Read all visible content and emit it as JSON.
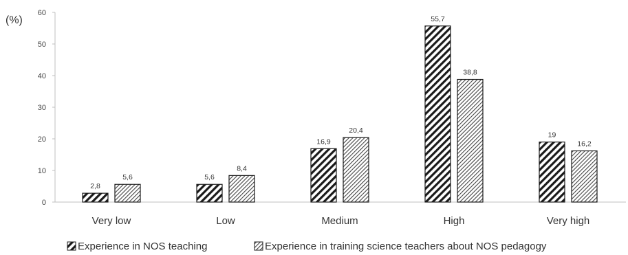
{
  "chart_data": {
    "type": "bar",
    "ylabel": "(%)",
    "ylim": [
      0,
      60
    ],
    "yticks": [
      "0",
      "10",
      "20",
      "30",
      "40",
      "50",
      "60"
    ],
    "grid": false,
    "legend_position": "bottom",
    "categories": [
      "Very low",
      "Low",
      "Medium",
      "High",
      "Very high"
    ],
    "series": [
      {
        "name": "Experience in NOS teaching",
        "values": [
          2.8,
          5.6,
          16.9,
          55.7,
          19
        ],
        "labels": [
          "2,8",
          "5,6",
          "16,9",
          "55,7",
          "19"
        ],
        "pattern": "diagonal-dense"
      },
      {
        "name": "Experience in training science teachers about NOS pedagogy",
        "values": [
          5.6,
          8.4,
          20.4,
          38.8,
          16.2
        ],
        "labels": [
          "5,6",
          "8,4",
          "20,4",
          "38,8",
          "16,2"
        ],
        "pattern": "diagonal-fine"
      }
    ]
  }
}
